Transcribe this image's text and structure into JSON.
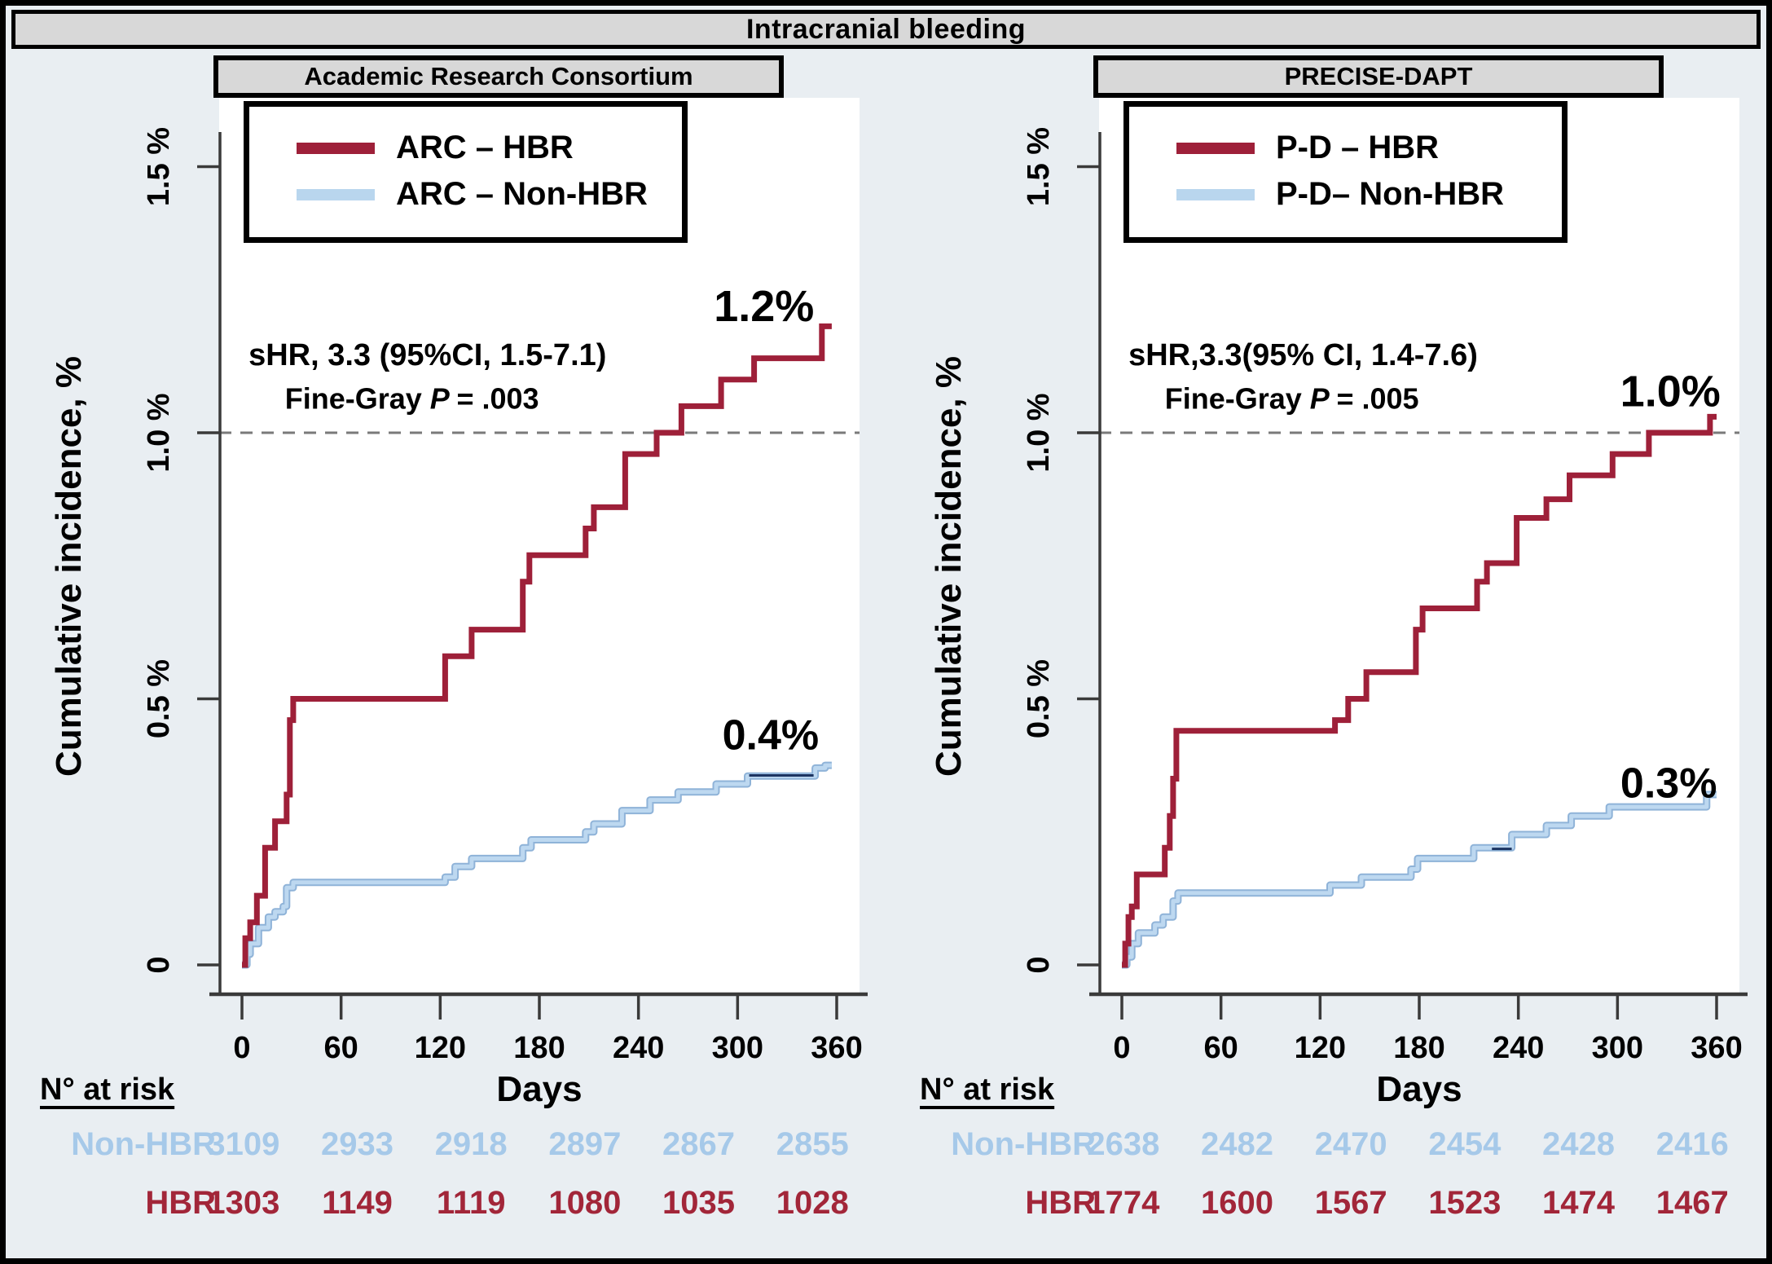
{
  "title": "Intracranial bleeding",
  "risk_heading": "N° at risk",
  "axes": {
    "y_title": "Cumulative incidence, %",
    "x_title": "Days",
    "y_tick_values": [
      0,
      0.5,
      1.0,
      1.5
    ],
    "y_tick_labels": [
      "0",
      "0.5 %",
      "1.0 %",
      "1.5 %"
    ],
    "x_ticks": [
      0,
      60,
      120,
      180,
      240,
      300,
      360
    ],
    "xlim": [
      0,
      360
    ],
    "ylim": [
      0,
      1.55
    ],
    "dashed_reference_y": 1.0,
    "colors": {
      "axis": "#3a3a3a",
      "dashed": "#7a7a7a",
      "plot_background": "#ffffff"
    }
  },
  "panels": [
    {
      "header": "Academic Research Consortium",
      "legend": [
        {
          "label": "ARC – HBR",
          "color": "#9E2039"
        },
        {
          "label": "ARC – Non-HBR",
          "color": "#B9D6EE"
        }
      ],
      "stats": {
        "shr": "sHR, 3.3 (95%CI, 1.5-7.1)",
        "test": "Fine-Gray ",
        "p_symbol": "P ",
        "p_value": "= .003"
      },
      "risk_rows": [
        {
          "label": "Non-HBR",
          "color": "#A6C9E9",
          "values": [
            "3109",
            "2933",
            "2918",
            "2897",
            "2867",
            "2855"
          ]
        },
        {
          "label": "HBR",
          "color": "#A22639",
          "values": [
            "1303",
            "1149",
            "1119",
            "1080",
            "1035",
            "1028"
          ]
        }
      ]
    },
    {
      "header": "PRECISE-DAPT",
      "legend": [
        {
          "label": "P-D – HBR",
          "color": "#9E2039"
        },
        {
          "label": "P-D– Non-HBR",
          "color": "#B9D6EE"
        }
      ],
      "stats": {
        "shr": "sHR,3.3(95% CI, 1.4-7.6)",
        "test": "Fine-Gray ",
        "p_symbol": "P ",
        "p_value": "= .005"
      },
      "risk_rows": [
        {
          "label": "Non-HBR",
          "color": "#A6C9E9",
          "values": [
            "2638",
            "2482",
            "2470",
            "2454",
            "2428",
            "2416"
          ]
        },
        {
          "label": "HBR",
          "color": "#A22639",
          "values": [
            "1774",
            "1600",
            "1567",
            "1523",
            "1474",
            "1467"
          ]
        }
      ]
    }
  ],
  "chart_data": [
    {
      "type": "line",
      "subtype": "step-cumulative-incidence",
      "title": "Academic Research Consortium",
      "xlabel": "Days",
      "ylabel": "Cumulative incidence, %",
      "xlim": [
        0,
        360
      ],
      "ylim": [
        0,
        1.55
      ],
      "reference_line_y": 1.0,
      "series": [
        {
          "name": "ARC – HBR",
          "color": "#9E2039",
          "final_label": "1.2%",
          "label_pos": {
            "day": 316,
            "pct": 1.21
          },
          "points": [
            [
              0,
              0
            ],
            [
              2,
              0.05
            ],
            [
              5,
              0.08
            ],
            [
              9,
              0.13
            ],
            [
              14,
              0.22
            ],
            [
              20,
              0.27
            ],
            [
              27,
              0.32
            ],
            [
              29,
              0.46
            ],
            [
              31,
              0.5
            ],
            [
              123,
              0.58
            ],
            [
              139,
              0.63
            ],
            [
              170,
              0.72
            ],
            [
              174,
              0.77
            ],
            [
              208,
              0.82
            ],
            [
              213,
              0.86
            ],
            [
              232,
              0.96
            ],
            [
              251,
              1.0
            ],
            [
              266,
              1.05
            ],
            [
              290,
              1.1
            ],
            [
              310,
              1.14
            ],
            [
              351,
              1.2
            ],
            [
              357,
              1.2
            ]
          ]
        },
        {
          "name": "ARC – Non-HBR",
          "color": "#A8CBE9",
          "final_label": "0.4%",
          "label_pos": {
            "day": 320,
            "pct": 0.405
          },
          "points": [
            [
              0,
              0
            ],
            [
              3,
              0.02
            ],
            [
              5,
              0.04
            ],
            [
              10,
              0.07
            ],
            [
              16,
              0.09
            ],
            [
              20,
              0.1
            ],
            [
              25,
              0.11
            ],
            [
              27,
              0.145
            ],
            [
              31,
              0.155
            ],
            [
              123,
              0.165
            ],
            [
              129,
              0.185
            ],
            [
              139,
              0.2
            ],
            [
              170,
              0.22
            ],
            [
              175,
              0.235
            ],
            [
              208,
              0.25
            ],
            [
              213,
              0.265
            ],
            [
              230,
              0.29
            ],
            [
              247,
              0.31
            ],
            [
              264,
              0.325
            ],
            [
              287,
              0.34
            ],
            [
              306,
              0.355
            ],
            [
              347,
              0.37
            ],
            [
              353,
              0.375
            ],
            [
              357,
              0.375
            ]
          ]
        }
      ],
      "overlay_marks": [
        {
          "y": 0.356,
          "x1": 307,
          "x2": 346
        }
      ]
    },
    {
      "type": "line",
      "subtype": "step-cumulative-incidence",
      "title": "PRECISE-DAPT",
      "xlabel": "Days",
      "ylabel": "Cumulative incidence, %",
      "xlim": [
        0,
        360
      ],
      "ylim": [
        0,
        1.55
      ],
      "reference_line_y": 1.0,
      "series": [
        {
          "name": "P-D – HBR",
          "color": "#9E2039",
          "final_label": "1.0%",
          "label_pos": {
            "day": 332,
            "pct": 1.05
          },
          "points": [
            [
              0,
              0
            ],
            [
              2,
              0.04
            ],
            [
              4,
              0.09
            ],
            [
              6,
              0.11
            ],
            [
              9,
              0.17
            ],
            [
              26,
              0.22
            ],
            [
              29,
              0.28
            ],
            [
              31,
              0.35
            ],
            [
              33,
              0.44
            ],
            [
              129,
              0.46
            ],
            [
              137,
              0.5
            ],
            [
              148,
              0.55
            ],
            [
              178,
              0.63
            ],
            [
              182,
              0.67
            ],
            [
              215,
              0.72
            ],
            [
              221,
              0.755
            ],
            [
              239,
              0.84
            ],
            [
              257,
              0.875
            ],
            [
              271,
              0.92
            ],
            [
              297,
              0.96
            ],
            [
              319,
              1.0
            ],
            [
              356,
              1.03
            ],
            [
              360,
              1.03
            ]
          ]
        },
        {
          "name": "P-D– Non-HBR",
          "color": "#A8CBE9",
          "final_label": "0.3%",
          "label_pos": {
            "day": 331,
            "pct": 0.315
          },
          "points": [
            [
              0,
              0
            ],
            [
              3,
              0.015
            ],
            [
              6,
              0.04
            ],
            [
              10,
              0.06
            ],
            [
              20,
              0.075
            ],
            [
              25,
              0.09
            ],
            [
              31,
              0.12
            ],
            [
              34,
              0.135
            ],
            [
              126,
              0.15
            ],
            [
              145,
              0.165
            ],
            [
              175,
              0.18
            ],
            [
              179,
              0.2
            ],
            [
              213,
              0.22
            ],
            [
              236,
              0.245
            ],
            [
              257,
              0.262
            ],
            [
              272,
              0.28
            ],
            [
              295,
              0.297
            ],
            [
              354,
              0.32
            ],
            [
              360,
              0.32
            ]
          ]
        }
      ],
      "overlay_marks": [
        {
          "y": 0.218,
          "x1": 224,
          "x2": 236
        }
      ]
    }
  ]
}
